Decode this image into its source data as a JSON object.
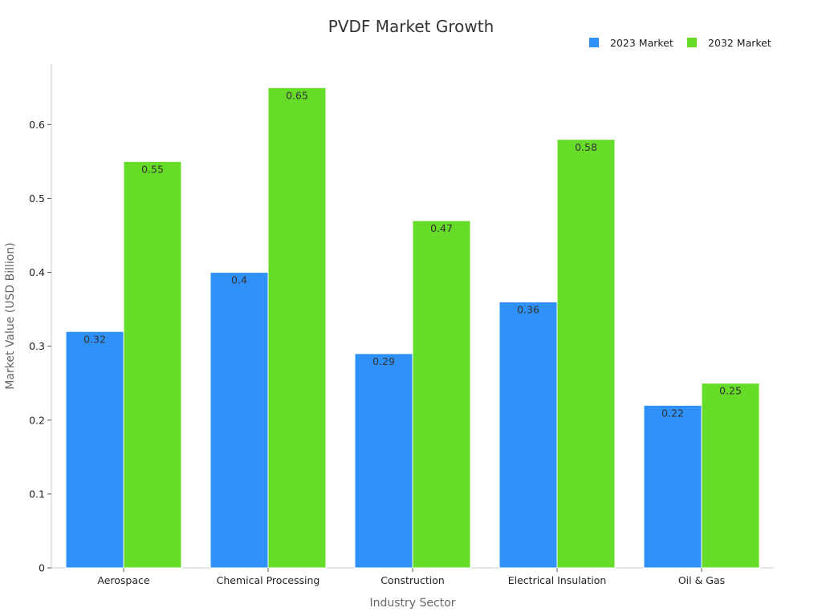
{
  "chart_data": {
    "type": "bar",
    "title": "PVDF Market Growth",
    "xlabel": "Industry Sector",
    "ylabel": "Market Value (USD Billion)",
    "categories": [
      "Aerospace",
      "Chemical Processing",
      "Construction",
      "Electrical Insulation",
      "Oil & Gas"
    ],
    "series": [
      {
        "name": "2023 Market",
        "color": "#2f91f7",
        "values": [
          0.32,
          0.4,
          0.29,
          0.36,
          0.22
        ]
      },
      {
        "name": "2032 Market",
        "color": "#66db28",
        "values": [
          0.55,
          0.65,
          0.47,
          0.58,
          0.25
        ]
      }
    ],
    "ylim": [
      0,
      0.6818
    ],
    "yticks": [
      0,
      0.1,
      0.2,
      0.3,
      0.4,
      0.5,
      0.6
    ],
    "ytick_labels": [
      "0",
      "0.1",
      "0.2",
      "0.3",
      "0.4",
      "0.5",
      "0.6"
    ],
    "legend_position": "top-right",
    "grid": false,
    "data_labels": true
  }
}
